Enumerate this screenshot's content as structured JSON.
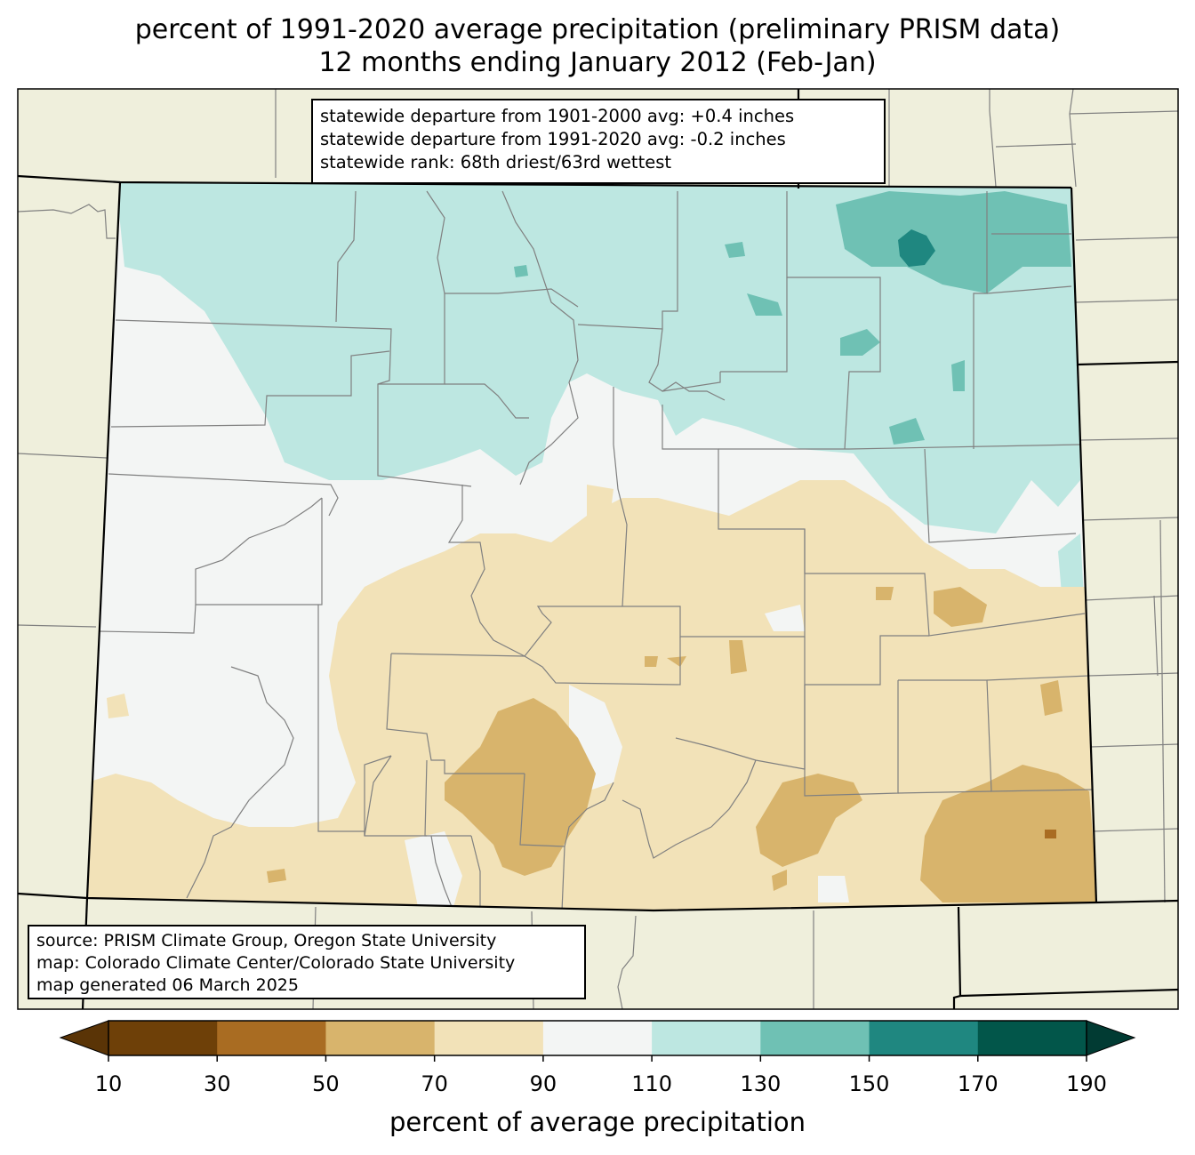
{
  "title": {
    "line1": "percent of 1991-2020 average precipitation (preliminary PRISM data)",
    "line2": "12 months ending January 2012 (Feb-Jan)"
  },
  "stats_box": {
    "line1": "statewide departure from 1901-2000 avg: +0.4 inches",
    "line2": "statewide departure from 1991-2020 avg: -0.2 inches",
    "line3": "statewide rank: 68th driest/63rd wettest"
  },
  "source_box": {
    "line1": "source: PRISM Climate Group, Oregon State University",
    "line2": "map: Colorado Climate Center/Colorado State University",
    "line3": "map generated 06 March 2025"
  },
  "colorbar": {
    "label": "percent of average precipitation",
    "ticks": [
      "10",
      "30",
      "50",
      "70",
      "90",
      "110",
      "130",
      "150",
      "170",
      "190"
    ],
    "bins": [
      {
        "range": "10-30",
        "color": "#6e4008"
      },
      {
        "range": "30-50",
        "color": "#a96c22"
      },
      {
        "range": "50-70",
        "color": "#d8b46c"
      },
      {
        "range": "70-90",
        "color": "#f2e2b8"
      },
      {
        "range": "90-110",
        "color": "#f3f5f4"
      },
      {
        "range": "110-130",
        "color": "#bde7e1"
      },
      {
        "range": "130-150",
        "color": "#6fc1b4"
      },
      {
        "range": "150-170",
        "color": "#1f8780"
      },
      {
        "range": "170-190",
        "color": "#02564a"
      }
    ],
    "under_color": "#5a3406",
    "over_color": "#013b33"
  },
  "map_colors": {
    "land_outside": "#efefdc",
    "state_border": "#000000",
    "county_border": "#808080"
  }
}
